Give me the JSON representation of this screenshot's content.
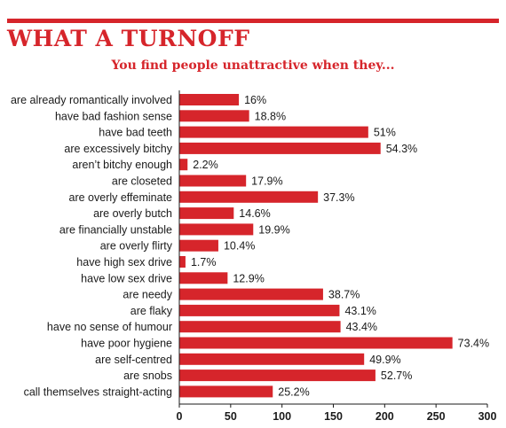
{
  "header": {
    "title": "WHAT A TURNOFF",
    "subtitle": "You find people unattractive when they..."
  },
  "colors": {
    "accent": "#d6252b",
    "bar": "#d6252b",
    "text": "#1a1a1a"
  },
  "chart_data": {
    "type": "bar",
    "orientation": "horizontal",
    "title": "WHAT A TURNOFF",
    "subtitle": "You find people unattractive when they...",
    "xlabel": "",
    "ylabel": "",
    "xlim": [
      0,
      300
    ],
    "xticks": [
      "0",
      "50",
      "100",
      "150",
      "200",
      "250",
      "300"
    ],
    "grid": false,
    "categories": [
      "are already romantically involved",
      "have bad fashion sense",
      "have bad teeth",
      "are excessively bitchy",
      "aren’t bitchy enough",
      "are closeted",
      "are overly effeminate",
      "are overly butch",
      "are financially unstable",
      "are overly flirty",
      "have high sex drive",
      "have low sex drive",
      "are needy",
      "are flaky",
      "have no sense of humour",
      "have poor hygiene",
      "are self-centred",
      "are snobs",
      "call themselves straight-acting"
    ],
    "values": [
      58,
      68,
      184,
      196,
      8,
      65,
      135,
      53,
      72,
      38,
      6,
      47,
      140,
      156,
      157,
      266,
      180,
      191,
      91
    ],
    "data_labels": [
      "16%",
      "18.8%",
      "51%",
      "54.3%",
      "2.2%",
      "17.9%",
      "37.3%",
      "14.6%",
      "19.9%",
      "10.4%",
      "1.7%",
      "12.9%",
      "38.7%",
      "43.1%",
      "43.4%",
      "73.4%",
      "49.9%",
      "52.7%",
      "25.2%"
    ]
  }
}
